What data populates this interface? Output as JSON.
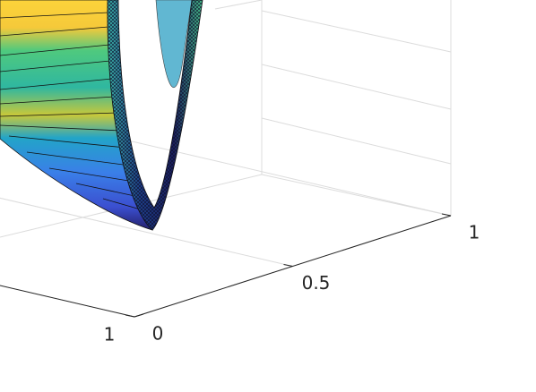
{
  "chart_data": {
    "type": "surface3d",
    "xlim": [
      0,
      1
    ],
    "xticks": [
      1
    ],
    "ylim": [
      0,
      1
    ],
    "yticks": [
      0,
      0.5,
      1
    ],
    "grid": true
  }
}
